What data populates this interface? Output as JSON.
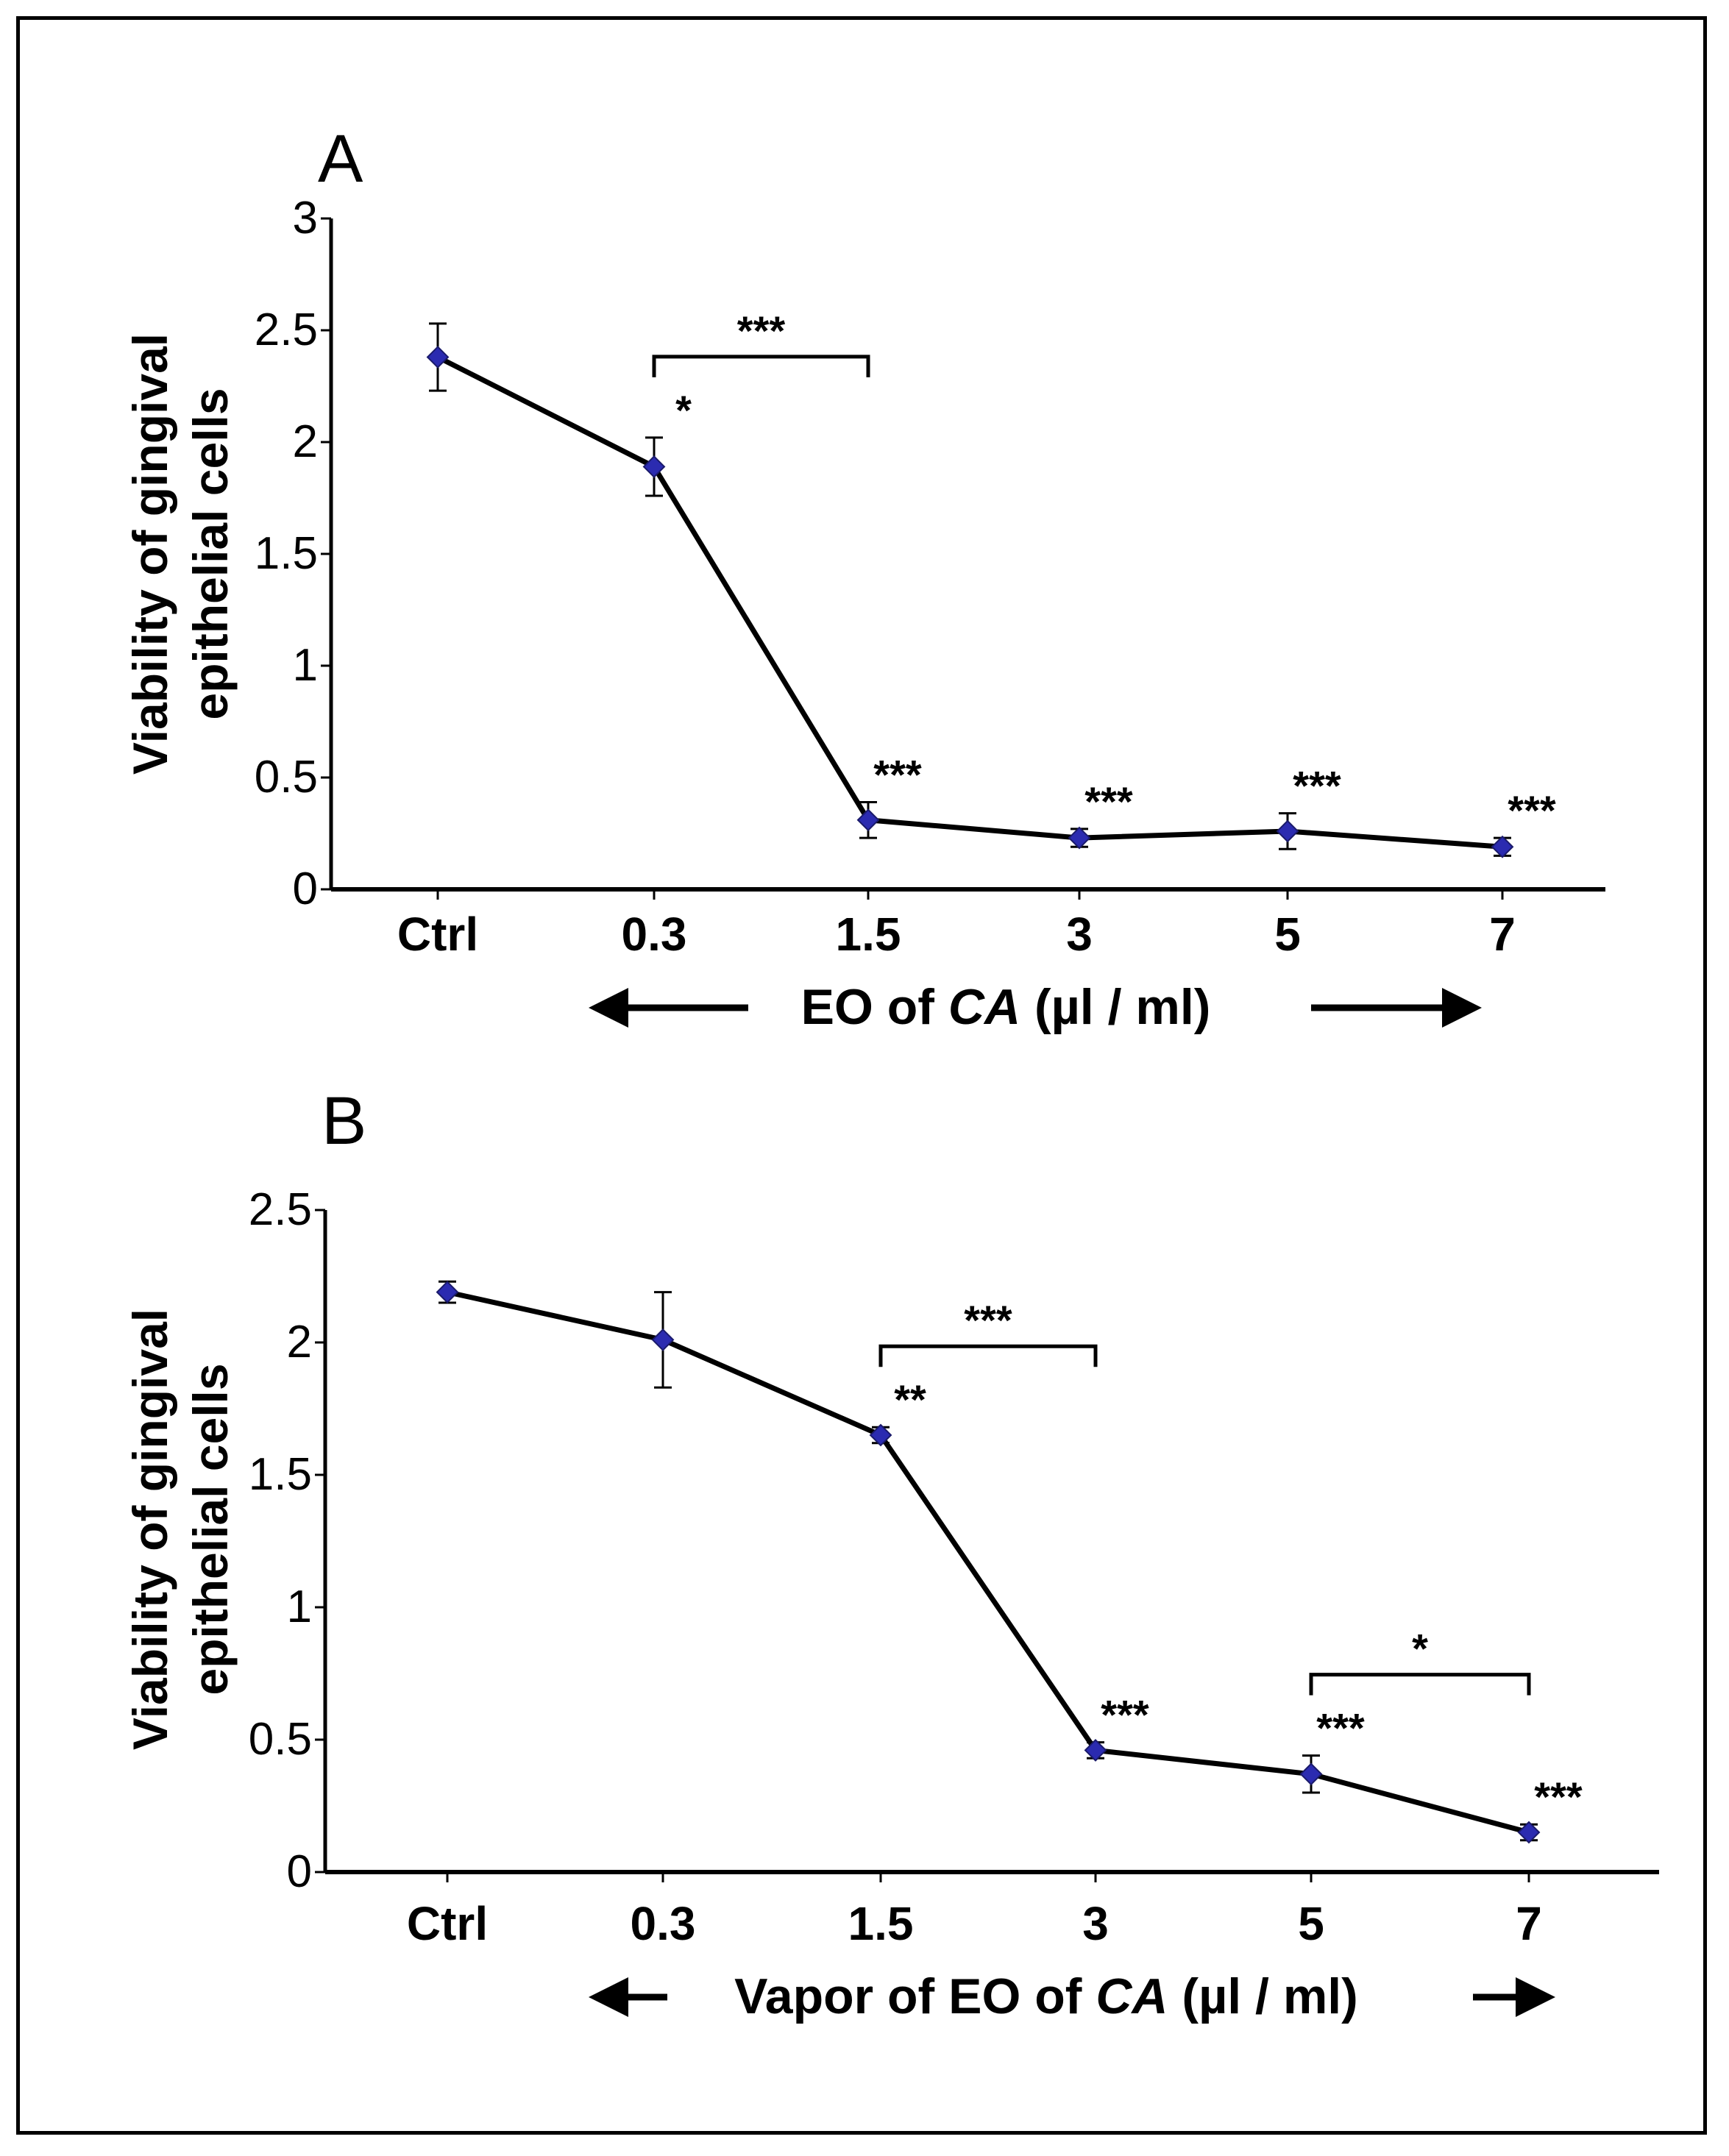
{
  "chart_data": [
    {
      "type": "line",
      "panel_label": "A",
      "categories": [
        "Ctrl",
        "0.3",
        "1.5",
        "3",
        "5",
        "7"
      ],
      "values": [
        2.38,
        1.89,
        0.31,
        0.23,
        0.26,
        0.19
      ],
      "errors": [
        0.15,
        0.13,
        0.08,
        0.04,
        0.08,
        0.04
      ],
      "ylim": [
        0,
        3
      ],
      "yticks": [
        "0",
        "0.5",
        "1",
        "1.5",
        "2",
        "2.5",
        "3"
      ],
      "ylabel_line1": "Viability of gingival",
      "ylabel_line2": "epithelial cells",
      "xlabel_prefix": "EO of ",
      "xlabel_italic": "CA",
      "xlabel_suffix": " (µl / ml)",
      "point_labels": [
        "",
        "*",
        "***",
        "***",
        "***",
        "***"
      ],
      "brackets": [
        {
          "from": 1,
          "to": 2,
          "label": "***"
        }
      ],
      "marker_color": "#2b2bb0",
      "line_color": "#000000"
    },
    {
      "type": "line",
      "panel_label": "B",
      "categories": [
        "Ctrl",
        "0.3",
        "1.5",
        "3",
        "5",
        "7"
      ],
      "values": [
        2.19,
        2.01,
        1.65,
        0.46,
        0.37,
        0.15
      ],
      "errors": [
        0.04,
        0.18,
        0.03,
        0.03,
        0.07,
        0.03
      ],
      "ylim": [
        0,
        2.5
      ],
      "yticks": [
        "0",
        "0.5",
        "1",
        "1.5",
        "2",
        "2.5"
      ],
      "ylabel_line1": "Viability of gingival",
      "ylabel_line2": "epithelial cells",
      "xlabel_prefix": "Vapor of EO of ",
      "xlabel_italic": "CA",
      "xlabel_suffix": " (µl / ml)",
      "point_labels": [
        "",
        "",
        "**",
        "***",
        "***",
        "***"
      ],
      "brackets": [
        {
          "from": 2,
          "to": 3,
          "label": "***"
        },
        {
          "from": 4,
          "to": 5,
          "label": "*"
        }
      ],
      "marker_color": "#2b2bb0",
      "line_color": "#000000"
    }
  ]
}
